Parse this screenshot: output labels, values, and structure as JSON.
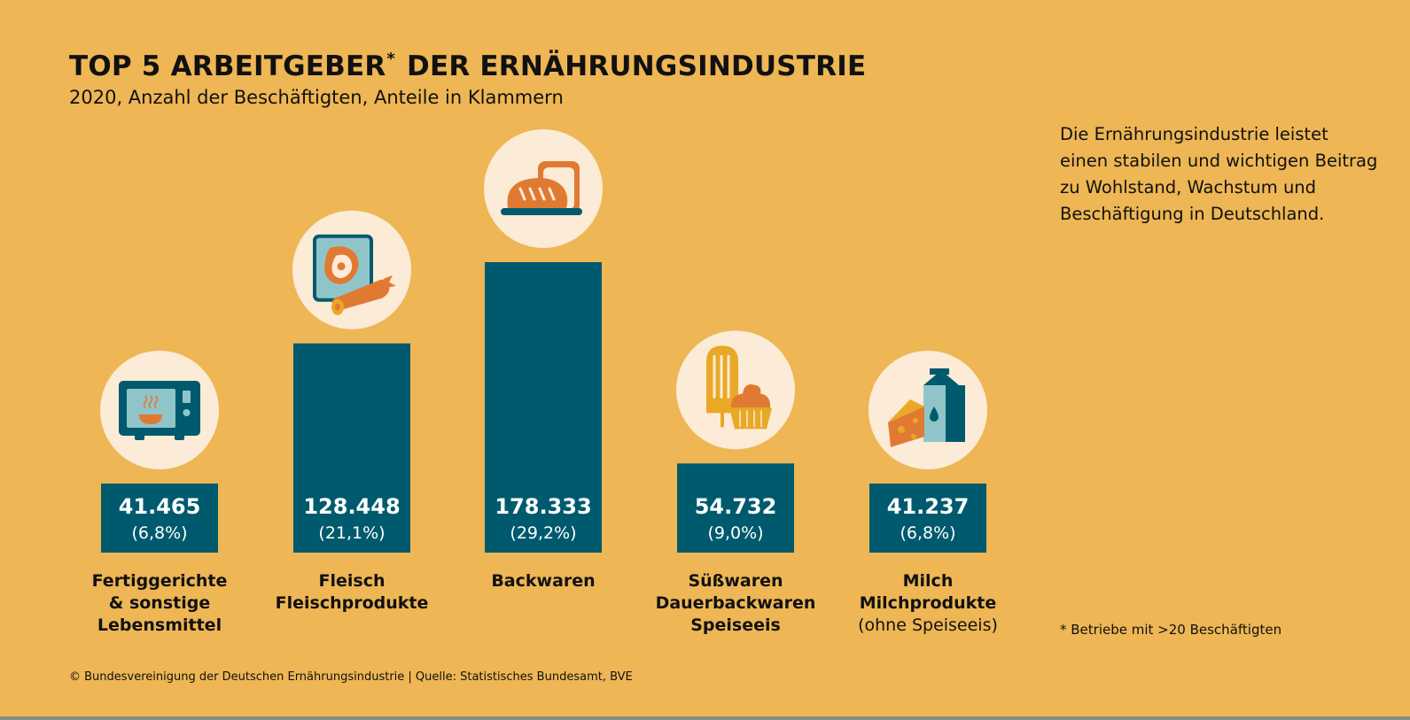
{
  "title": "TOP 5 ARBEITGEBER",
  "title_mark": "*",
  "title_rest": " DER ERNÄHRUNGSINDUSTRIE",
  "subtitle": "2020, Anzahl der Beschäftigten, Anteile in Klammern",
  "side_note": "Die Ernährungsindustrie leistet einen stabilen und wichtigen Beitrag zu Wohlstand, Wachstum und Beschäftigung in Deutschland.",
  "footnote": "* Betriebe mit >20 Beschäftigten",
  "copyright": "© Bundesvereinigung der Deutschen Ernährungsindustrie | Quelle: Statistisches Bundesamt, BVE",
  "colors": {
    "background": "#EEB654",
    "bar": "#005A6E",
    "circle": "#FCEBD6",
    "text": "#111111",
    "bar_text": "#FFFFFF",
    "icon_orange": "#E07A33",
    "icon_yellow": "#E9A825",
    "icon_teal": "#005A6E",
    "icon_lightblue": "#8FC5C9"
  },
  "chart_data": {
    "type": "bar",
    "title": "TOP 5 ARBEITGEBER* DER ERNÄHRUNGSINDUSTRIE",
    "xlabel": "",
    "ylabel": "Anzahl der Beschäftigten",
    "ylim": [
      0,
      178333
    ],
    "grid": false,
    "categories": [
      "Fertiggerichte & sonstige Lebensmittel",
      "Fleisch Fleischprodukte",
      "Backwaren",
      "Süßwaren Dauerbackwaren Speiseeis",
      "Milch Milchprodukte (ohne Speiseeis)"
    ],
    "values": [
      41465,
      128448,
      178333,
      54732,
      41237
    ],
    "bars": [
      {
        "value": 41465,
        "value_label": "41.465",
        "share_label": "(6,8%)",
        "label_lines": [
          "Fertiggerichte",
          "& sonstige",
          "Lebensmittel"
        ],
        "icon": "microwave-icon"
      },
      {
        "value": 128448,
        "value_label": "128.448",
        "share_label": "(21,1%)",
        "label_lines": [
          "Fleisch",
          "Fleischprodukte"
        ],
        "icon": "meat-sausage-icon"
      },
      {
        "value": 178333,
        "value_label": "178.333",
        "share_label": "(29,2%)",
        "label_lines": [
          "Backwaren"
        ],
        "icon": "bread-icon"
      },
      {
        "value": 54732,
        "value_label": "54.732",
        "share_label": "(9,0%)",
        "label_lines": [
          "Süßwaren",
          "Dauerbackwaren",
          "Speiseeis"
        ],
        "icon": "icecream-cupcake-icon"
      },
      {
        "value": 41237,
        "value_label": "41.237",
        "share_label": "(6,8%)",
        "label_lines": [
          "Milch",
          "Milchprodukte",
          "(ohne Speiseeis)"
        ],
        "icon": "milk-cheese-icon"
      }
    ]
  }
}
